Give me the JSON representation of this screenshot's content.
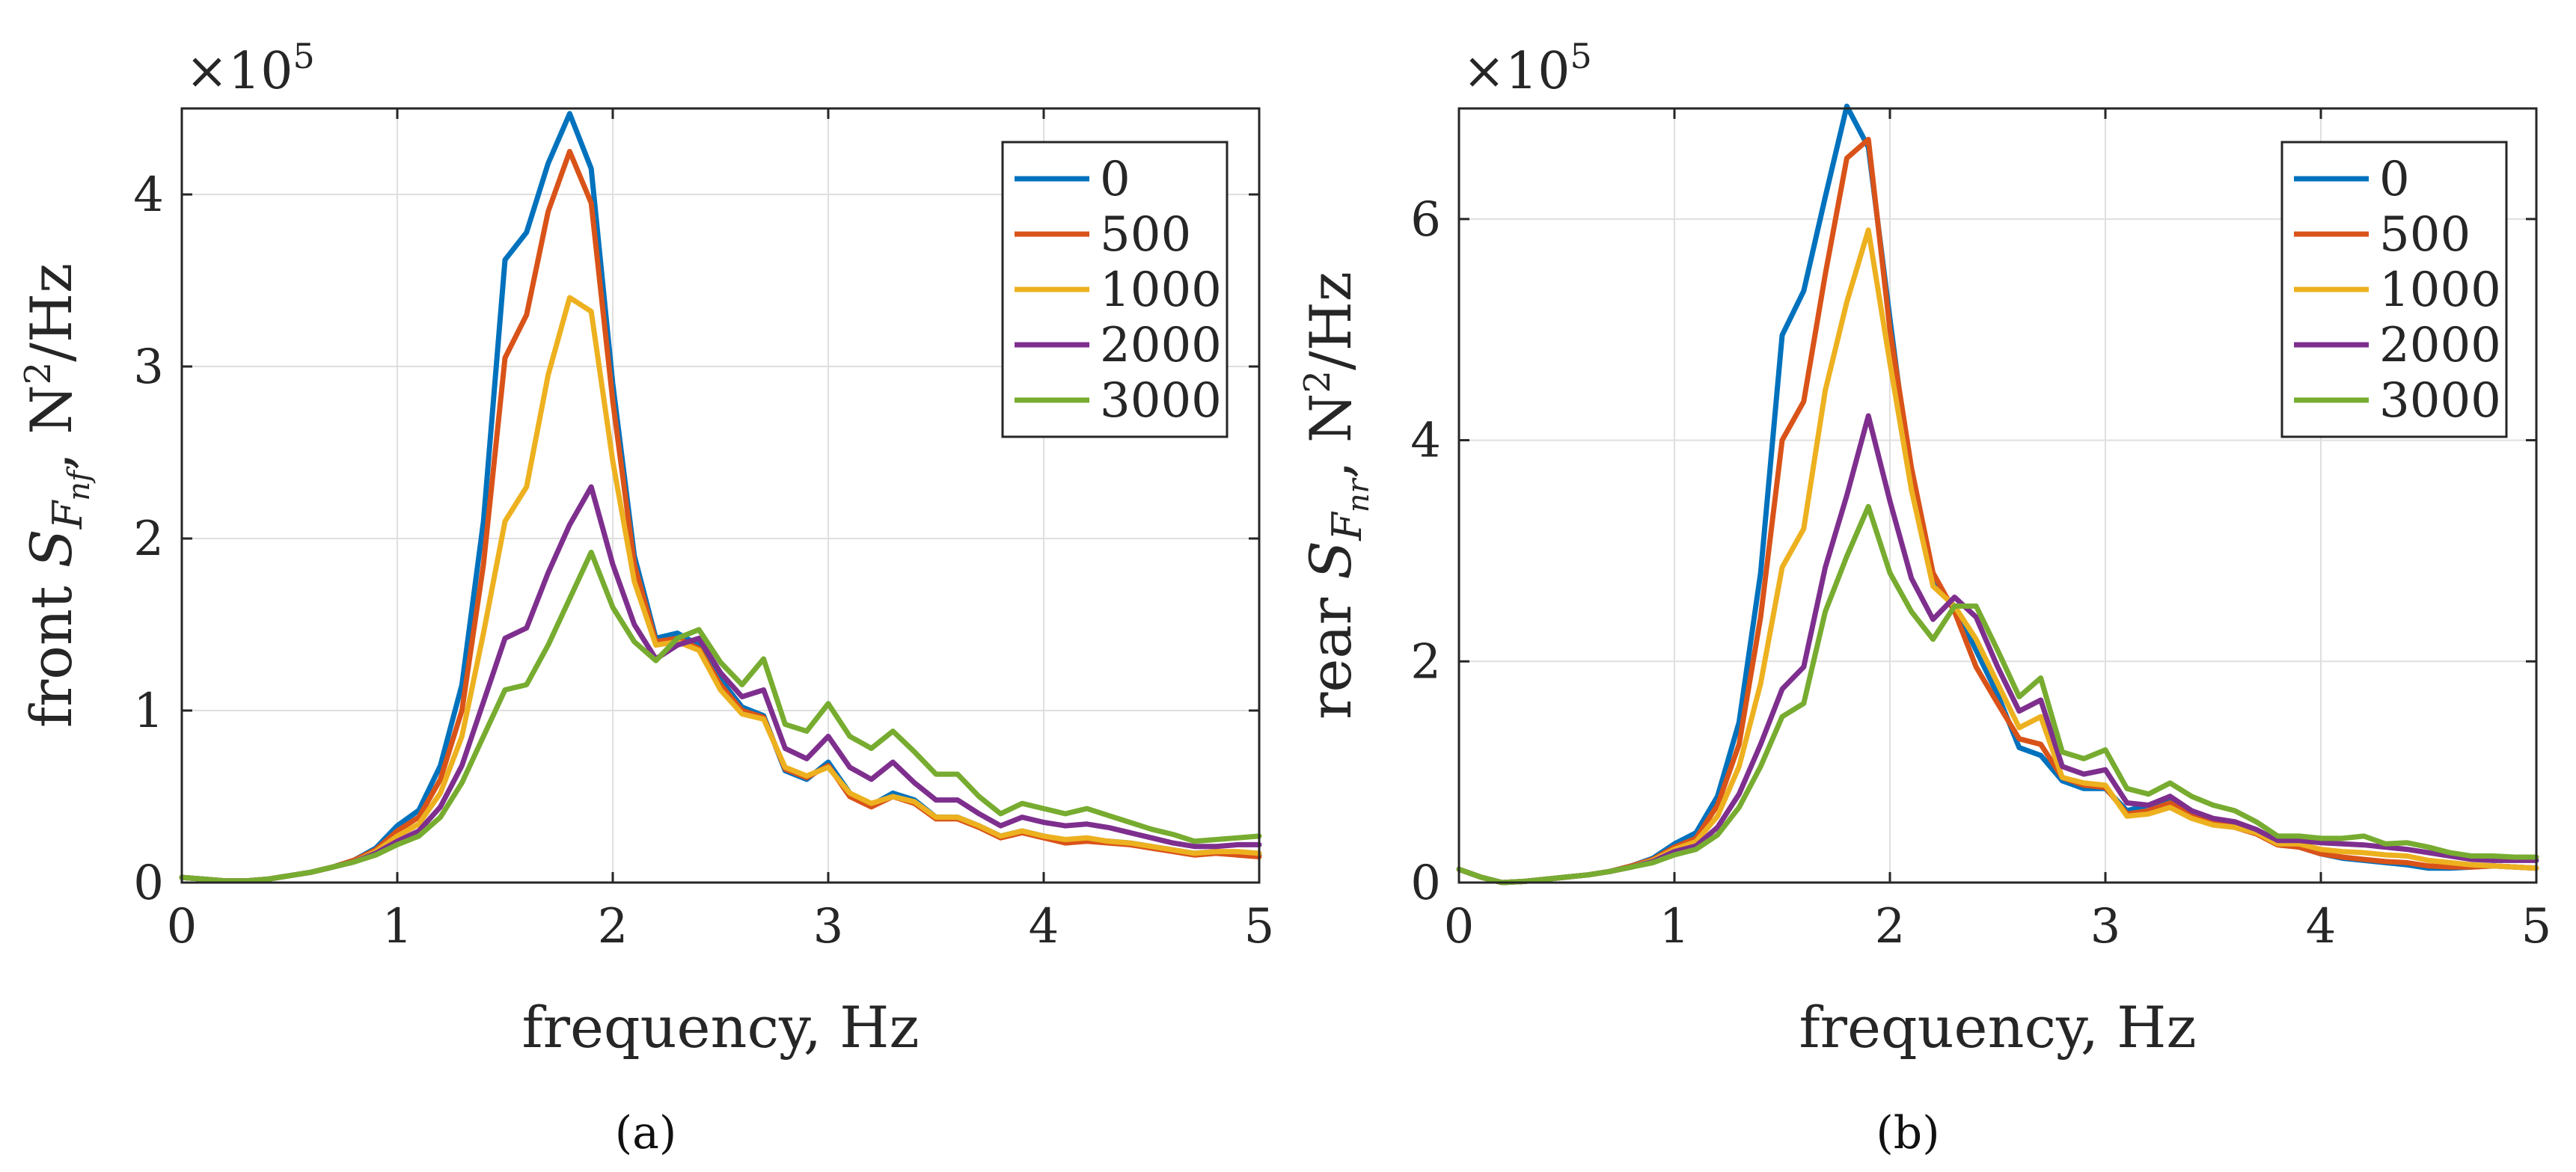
{
  "figure": {
    "caption_a": "(a)",
    "caption_b": "(b)"
  },
  "colors": {
    "series": [
      "#0072BD",
      "#D95319",
      "#EDB120",
      "#7E2F8E",
      "#77AC30"
    ],
    "grid": "#dfdfdf",
    "axis": "#262626"
  },
  "chart_data": [
    {
      "type": "line",
      "id": "a",
      "caption": "(a)",
      "xlabel": "frequency, Hz",
      "ylabel_prefix": "front ",
      "ylabel_symbol": "S",
      "ylabel_subscript_main": "F",
      "ylabel_subscript_sub": "nf",
      "ylabel_unit_base": "N",
      "ylabel_unit_exp": "2",
      "ylabel_unit_rest": "/Hz",
      "ylabel_sep": ", ",
      "exponent_base": "×10",
      "exponent_power": "5",
      "xlim": [
        0,
        5
      ],
      "ylim": [
        0,
        4.5
      ],
      "xticks": [
        0,
        1,
        2,
        3,
        4,
        5
      ],
      "yticks": [
        0,
        1,
        2,
        3,
        4
      ],
      "legend_position": "top-right",
      "grid": true,
      "x": [
        0,
        0.1,
        0.2,
        0.3,
        0.4,
        0.5,
        0.6,
        0.7,
        0.8,
        0.9,
        1.0,
        1.1,
        1.2,
        1.3,
        1.4,
        1.5,
        1.6,
        1.7,
        1.8,
        1.9,
        2.0,
        2.1,
        2.2,
        2.3,
        2.4,
        2.5,
        2.6,
        2.7,
        2.8,
        2.9,
        3.0,
        3.1,
        3.2,
        3.3,
        3.4,
        3.5,
        3.6,
        3.7,
        3.8,
        3.9,
        4.0,
        4.1,
        4.2,
        4.3,
        4.4,
        4.5,
        4.6,
        4.7,
        4.8,
        4.9,
        5.0
      ],
      "series": [
        {
          "name": "0",
          "values": [
            0.03,
            0.02,
            0.01,
            0.01,
            0.02,
            0.04,
            0.06,
            0.09,
            0.13,
            0.2,
            0.33,
            0.42,
            0.68,
            1.15,
            2.1,
            3.62,
            3.78,
            4.18,
            4.47,
            4.15,
            2.9,
            1.9,
            1.42,
            1.45,
            1.38,
            1.18,
            1.02,
            0.97,
            0.65,
            0.6,
            0.7,
            0.52,
            0.45,
            0.52,
            0.48,
            0.38,
            0.38,
            0.33,
            0.27,
            0.3,
            0.27,
            0.24,
            0.25,
            0.24,
            0.23,
            0.21,
            0.19,
            0.17,
            0.18,
            0.17,
            0.16
          ]
        },
        {
          "name": "500",
          "values": [
            0.03,
            0.02,
            0.01,
            0.01,
            0.02,
            0.04,
            0.06,
            0.09,
            0.13,
            0.19,
            0.3,
            0.38,
            0.6,
            1.0,
            1.85,
            3.05,
            3.3,
            3.9,
            4.25,
            3.95,
            2.8,
            1.85,
            1.4,
            1.42,
            1.36,
            1.15,
            1.0,
            0.96,
            0.66,
            0.61,
            0.68,
            0.5,
            0.44,
            0.5,
            0.46,
            0.37,
            0.37,
            0.32,
            0.26,
            0.29,
            0.26,
            0.23,
            0.24,
            0.23,
            0.22,
            0.2,
            0.18,
            0.16,
            0.17,
            0.16,
            0.15
          ]
        },
        {
          "name": "1000",
          "values": [
            0.03,
            0.02,
            0.01,
            0.01,
            0.02,
            0.04,
            0.06,
            0.09,
            0.12,
            0.18,
            0.27,
            0.34,
            0.52,
            0.85,
            1.45,
            2.1,
            2.3,
            2.95,
            3.4,
            3.32,
            2.45,
            1.75,
            1.38,
            1.4,
            1.35,
            1.12,
            0.98,
            0.95,
            0.67,
            0.62,
            0.67,
            0.52,
            0.46,
            0.5,
            0.47,
            0.38,
            0.38,
            0.33,
            0.27,
            0.3,
            0.27,
            0.25,
            0.26,
            0.24,
            0.23,
            0.21,
            0.19,
            0.17,
            0.18,
            0.18,
            0.17
          ]
        },
        {
          "name": "2000",
          "values": [
            0.03,
            0.02,
            0.01,
            0.01,
            0.02,
            0.04,
            0.06,
            0.09,
            0.12,
            0.17,
            0.24,
            0.3,
            0.44,
            0.68,
            1.05,
            1.42,
            1.48,
            1.8,
            2.08,
            2.3,
            1.85,
            1.5,
            1.3,
            1.38,
            1.42,
            1.22,
            1.08,
            1.12,
            0.78,
            0.72,
            0.85,
            0.67,
            0.6,
            0.7,
            0.58,
            0.48,
            0.48,
            0.4,
            0.33,
            0.38,
            0.35,
            0.33,
            0.34,
            0.32,
            0.29,
            0.26,
            0.23,
            0.21,
            0.21,
            0.22,
            0.22
          ]
        },
        {
          "name": "3000",
          "values": [
            0.03,
            0.02,
            0.01,
            0.01,
            0.02,
            0.04,
            0.06,
            0.09,
            0.12,
            0.16,
            0.22,
            0.27,
            0.38,
            0.58,
            0.85,
            1.12,
            1.15,
            1.38,
            1.65,
            1.92,
            1.6,
            1.4,
            1.29,
            1.42,
            1.47,
            1.28,
            1.15,
            1.3,
            0.92,
            0.88,
            1.04,
            0.85,
            0.78,
            0.88,
            0.76,
            0.63,
            0.63,
            0.5,
            0.4,
            0.46,
            0.43,
            0.4,
            0.43,
            0.39,
            0.35,
            0.31,
            0.28,
            0.24,
            0.25,
            0.26,
            0.27
          ]
        }
      ]
    },
    {
      "type": "line",
      "id": "b",
      "caption": "(b)",
      "xlabel": "frequency, Hz",
      "ylabel_prefix": "rear ",
      "ylabel_symbol": "S",
      "ylabel_subscript_main": "F",
      "ylabel_subscript_sub": "nr",
      "ylabel_unit_base": "N",
      "ylabel_unit_exp": "2",
      "ylabel_unit_rest": "/Hz",
      "ylabel_sep": ", ",
      "exponent_base": "×10",
      "exponent_power": "5",
      "xlim": [
        0,
        5
      ],
      "ylim": [
        0,
        7
      ],
      "xticks": [
        0,
        1,
        2,
        3,
        4,
        5
      ],
      "yticks": [
        0,
        2,
        4,
        6
      ],
      "legend_position": "top-right",
      "grid": true,
      "x": [
        0,
        0.1,
        0.2,
        0.3,
        0.4,
        0.5,
        0.6,
        0.7,
        0.8,
        0.9,
        1.0,
        1.1,
        1.2,
        1.3,
        1.4,
        1.5,
        1.6,
        1.7,
        1.8,
        1.9,
        2.0,
        2.1,
        2.2,
        2.3,
        2.4,
        2.5,
        2.6,
        2.7,
        2.8,
        2.9,
        3.0,
        3.1,
        3.2,
        3.3,
        3.4,
        3.5,
        3.6,
        3.7,
        3.8,
        3.9,
        4.0,
        4.1,
        4.2,
        4.3,
        4.4,
        4.5,
        4.6,
        4.7,
        4.8,
        4.9,
        5.0
      ],
      "series": [
        {
          "name": "0",
          "values": [
            0.12,
            0.05,
            0.0,
            0.01,
            0.03,
            0.05,
            0.07,
            0.1,
            0.15,
            0.22,
            0.35,
            0.45,
            0.78,
            1.45,
            2.8,
            4.95,
            5.35,
            6.2,
            7.02,
            6.65,
            5.1,
            3.6,
            2.7,
            2.5,
            2.1,
            1.7,
            1.22,
            1.15,
            0.92,
            0.85,
            0.85,
            0.65,
            0.7,
            0.75,
            0.62,
            0.55,
            0.52,
            0.45,
            0.35,
            0.32,
            0.26,
            0.22,
            0.2,
            0.18,
            0.16,
            0.13,
            0.13,
            0.14,
            0.15,
            0.14,
            0.13
          ]
        },
        {
          "name": "500",
          "values": [
            0.12,
            0.05,
            0.0,
            0.01,
            0.03,
            0.05,
            0.07,
            0.1,
            0.15,
            0.21,
            0.32,
            0.4,
            0.7,
            1.25,
            2.4,
            4.0,
            4.35,
            5.5,
            6.55,
            6.72,
            5.0,
            3.75,
            2.8,
            2.45,
            1.95,
            1.62,
            1.3,
            1.25,
            0.95,
            0.88,
            0.86,
            0.62,
            0.65,
            0.72,
            0.6,
            0.55,
            0.5,
            0.44,
            0.34,
            0.32,
            0.26,
            0.23,
            0.21,
            0.19,
            0.18,
            0.15,
            0.14,
            0.14,
            0.15,
            0.14,
            0.13
          ]
        },
        {
          "name": "1000",
          "values": [
            0.12,
            0.05,
            0.0,
            0.01,
            0.03,
            0.05,
            0.07,
            0.1,
            0.14,
            0.2,
            0.3,
            0.37,
            0.6,
            1.05,
            1.8,
            2.85,
            3.2,
            4.45,
            5.25,
            5.9,
            4.7,
            3.55,
            2.68,
            2.5,
            2.2,
            1.8,
            1.4,
            1.5,
            0.95,
            0.9,
            0.88,
            0.6,
            0.62,
            0.68,
            0.58,
            0.52,
            0.5,
            0.45,
            0.35,
            0.35,
            0.3,
            0.28,
            0.27,
            0.25,
            0.24,
            0.2,
            0.18,
            0.16,
            0.15,
            0.14,
            0.13
          ]
        },
        {
          "name": "2000",
          "values": [
            0.12,
            0.05,
            0.0,
            0.01,
            0.03,
            0.05,
            0.07,
            0.1,
            0.14,
            0.19,
            0.28,
            0.33,
            0.5,
            0.8,
            1.25,
            1.75,
            1.95,
            2.85,
            3.5,
            4.22,
            3.45,
            2.75,
            2.38,
            2.58,
            2.4,
            1.95,
            1.55,
            1.65,
            1.05,
            0.98,
            1.02,
            0.72,
            0.7,
            0.78,
            0.65,
            0.58,
            0.55,
            0.48,
            0.38,
            0.38,
            0.36,
            0.35,
            0.34,
            0.32,
            0.3,
            0.27,
            0.24,
            0.21,
            0.2,
            0.2,
            0.2
          ]
        },
        {
          "name": "3000",
          "values": [
            0.12,
            0.05,
            0.0,
            0.01,
            0.03,
            0.05,
            0.07,
            0.1,
            0.14,
            0.18,
            0.25,
            0.3,
            0.43,
            0.68,
            1.05,
            1.5,
            1.62,
            2.45,
            2.95,
            3.4,
            2.8,
            2.45,
            2.2,
            2.5,
            2.5,
            2.1,
            1.68,
            1.85,
            1.18,
            1.12,
            1.2,
            0.85,
            0.8,
            0.9,
            0.78,
            0.7,
            0.65,
            0.55,
            0.42,
            0.42,
            0.4,
            0.4,
            0.42,
            0.35,
            0.36,
            0.32,
            0.27,
            0.24,
            0.24,
            0.23,
            0.23
          ]
        }
      ]
    }
  ]
}
